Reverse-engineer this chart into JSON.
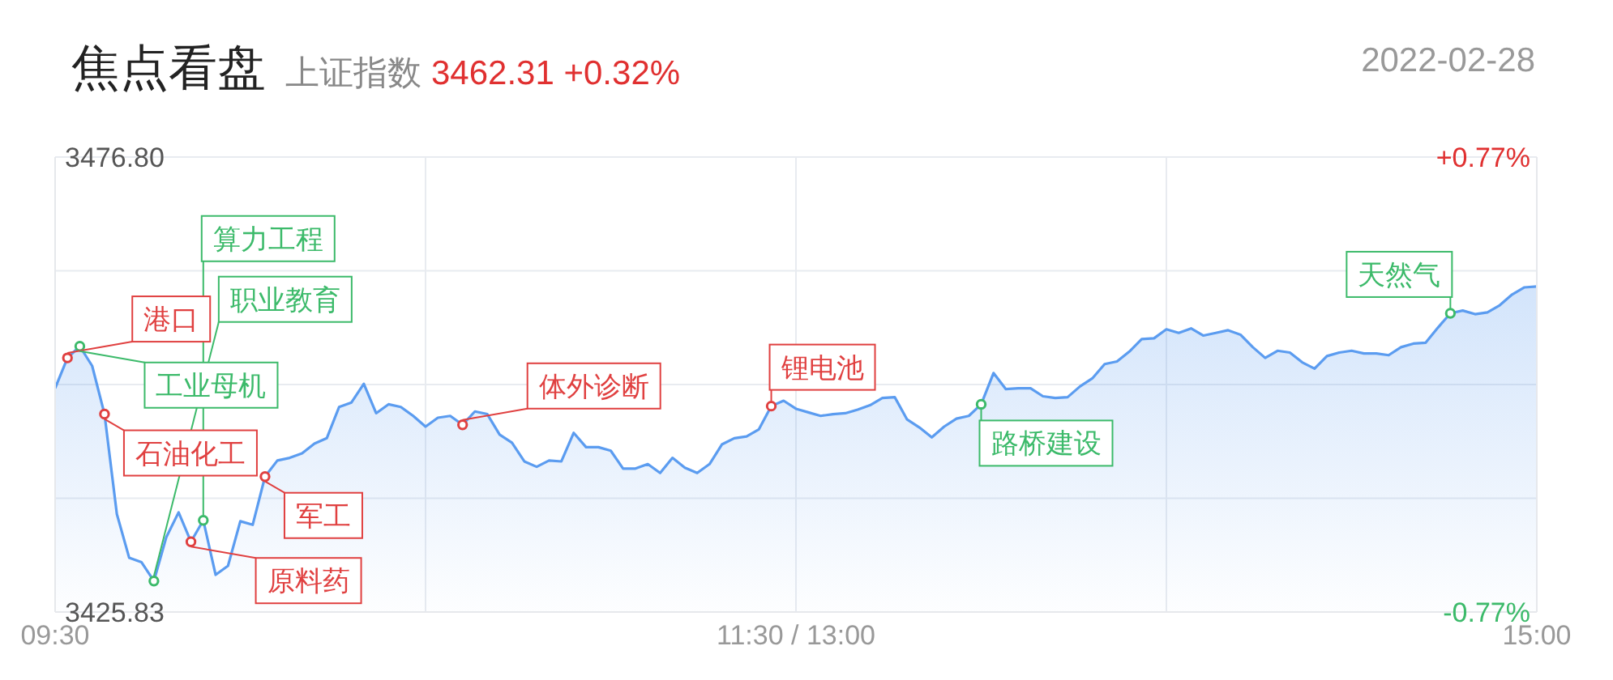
{
  "chart_data": {
    "type": "area",
    "title": "焦点看盘",
    "subtitle": "上证指数 3462.31 +0.32%",
    "annotations": [
      "2022-02-28"
    ],
    "categories": [
      "09:30",
      null,
      null,
      null,
      null,
      null,
      null,
      null,
      null,
      null,
      null,
      null,
      null,
      null,
      null,
      null,
      null,
      null,
      null,
      null,
      null,
      null,
      null,
      null,
      null,
      null,
      null,
      null,
      null,
      null,
      null,
      null,
      null,
      null,
      null,
      null,
      null,
      null,
      null,
      null,
      null,
      null,
      null,
      null,
      null,
      null,
      null,
      null,
      null,
      null,
      null,
      null,
      null,
      null,
      null,
      null,
      null,
      null,
      null,
      null,
      "11:30 / 13:00",
      null,
      null,
      null,
      null,
      null,
      null,
      null,
      null,
      null,
      null,
      null,
      null,
      null,
      null,
      null,
      null,
      null,
      null,
      null,
      null,
      null,
      null,
      null,
      null,
      null,
      null,
      null,
      null,
      null,
      null,
      null,
      null,
      null,
      null,
      null,
      null,
      null,
      null,
      null,
      null,
      null,
      null,
      null,
      null,
      null,
      null,
      null,
      null,
      null,
      null,
      null,
      null,
      null,
      null,
      null,
      null,
      null,
      null,
      null,
      "15:00"
    ],
    "series": [
      {
        "color": "#5b9cf0",
        "values": [
          3450.9,
          3454.3,
          3455.6,
          3453.4,
          3448.0,
          3436.8,
          3431.9,
          3431.4,
          3429.3,
          3434.2,
          3437.0,
          3433.7,
          3436.1,
          3430.0,
          3431.0,
          3436.0,
          3435.6,
          3441.0,
          3442.8,
          3443.1,
          3443.6,
          3444.7,
          3445.3,
          3448.8,
          3449.3,
          3451.4,
          3448.1,
          3449.1,
          3448.8,
          3447.8,
          3446.6,
          3447.6,
          3447.8,
          3446.8,
          3448.3,
          3448.0,
          3445.7,
          3444.8,
          3442.7,
          3442.1,
          3442.8,
          3442.7,
          3445.9,
          3444.3,
          3444.3,
          3443.9,
          3441.9,
          3441.9,
          3442.4,
          3441.4,
          3443.1,
          3442.0,
          3441.4,
          3442.4,
          3444.6,
          3445.3,
          3445.5,
          3446.3,
          3448.9,
          3449.5,
          3448.6,
          3448.2,
          3447.8,
          3448.0,
          3448.1,
          3448.5,
          3449.0,
          3449.8,
          3449.9,
          3447.4,
          3446.5,
          3445.4,
          3446.6,
          3447.5,
          3447.8,
          3449.1,
          3452.6,
          3450.8,
          3450.9,
          3450.9,
          3450.0,
          3449.8,
          3449.9,
          3451.1,
          3452.0,
          3453.6,
          3453.9,
          3455.0,
          3456.4,
          3456.5,
          3457.5,
          3457.1,
          3457.6,
          3456.8,
          3457.1,
          3457.4,
          3456.9,
          3455.5,
          3454.3,
          3455.1,
          3454.9,
          3453.8,
          3453.1,
          3454.5,
          3454.9,
          3455.1,
          3454.8,
          3454.8,
          3454.6,
          3455.5,
          3455.9,
          3456.0,
          3457.7,
          3459.3,
          3459.6,
          3459.2,
          3459.4,
          3460.2,
          3461.4,
          3462.2,
          3462.3
        ]
      },
      {
        "type": "scatter",
        "color": "#e04040",
        "marker": "circle",
        "values": [
          null,
          3454.3,
          null,
          null,
          3448.0,
          null,
          null,
          null,
          null,
          null,
          null,
          3433.7,
          null,
          null,
          null,
          null,
          null,
          3441.0,
          null,
          null,
          null,
          null,
          null,
          null,
          null,
          null,
          null,
          null,
          null,
          null,
          null,
          null,
          null,
          3446.8,
          null,
          null,
          null,
          null,
          null,
          null,
          null,
          null,
          null,
          null,
          null,
          null,
          null,
          null,
          null,
          null,
          null,
          null,
          null,
          null,
          null,
          null,
          null,
          null,
          3448.9,
          null,
          null,
          null,
          null,
          null,
          null,
          null,
          null,
          null,
          null,
          null,
          null,
          null,
          null,
          null,
          null,
          null,
          null,
          null,
          null,
          null,
          null,
          null,
          null,
          null,
          null,
          null,
          null,
          null,
          null,
          null,
          null,
          null,
          null,
          null,
          null,
          null,
          null,
          null,
          null,
          null,
          null,
          null,
          null,
          null,
          null,
          null,
          null,
          null,
          null,
          null,
          null,
          null,
          null,
          null,
          null,
          null,
          null,
          null,
          null,
          null,
          null
        ],
        "value_labels": [
          null,
          "港口",
          null,
          null,
          "石油化工",
          null,
          null,
          null,
          null,
          null,
          null,
          "原料药",
          null,
          null,
          null,
          null,
          null,
          "军工",
          null,
          null,
          null,
          null,
          null,
          null,
          null,
          null,
          null,
          null,
          null,
          null,
          null,
          null,
          null,
          "体外诊断",
          null,
          null,
          null,
          null,
          null,
          null,
          null,
          null,
          null,
          null,
          null,
          null,
          null,
          null,
          null,
          null,
          null,
          null,
          null,
          null,
          null,
          null,
          null,
          null,
          "锂电池",
          null,
          null,
          null,
          null,
          null,
          null,
          null,
          null,
          null,
          null,
          null,
          null,
          null,
          null,
          null,
          null,
          null,
          null,
          null,
          null,
          null,
          null,
          null,
          null,
          null,
          null,
          null,
          null,
          null,
          null,
          null,
          null,
          null,
          null,
          null,
          null,
          null,
          null,
          null,
          null,
          null,
          null,
          null,
          null,
          null,
          null,
          null,
          null,
          null,
          null,
          null,
          null,
          null,
          null,
          null,
          null,
          null,
          null,
          null,
          null,
          null,
          null
        ]
      },
      {
        "type": "scatter",
        "color": "#3cba6a",
        "marker": "circle",
        "values": [
          null,
          null,
          3455.6,
          null,
          null,
          null,
          null,
          null,
          3429.3,
          null,
          null,
          null,
          3436.1,
          null,
          null,
          null,
          null,
          null,
          null,
          null,
          null,
          null,
          null,
          null,
          null,
          null,
          null,
          null,
          null,
          null,
          null,
          null,
          null,
          null,
          null,
          null,
          null,
          null,
          null,
          null,
          null,
          null,
          null,
          null,
          null,
          null,
          null,
          null,
          null,
          null,
          null,
          null,
          null,
          null,
          null,
          null,
          null,
          null,
          null,
          null,
          null,
          null,
          null,
          null,
          null,
          null,
          null,
          null,
          null,
          null,
          null,
          null,
          null,
          null,
          null,
          3449.1,
          null,
          null,
          null,
          null,
          null,
          null,
          null,
          null,
          null,
          null,
          null,
          null,
          null,
          null,
          null,
          null,
          null,
          null,
          null,
          null,
          null,
          null,
          null,
          null,
          null,
          null,
          null,
          null,
          null,
          null,
          null,
          null,
          null,
          null,
          null,
          null,
          null,
          3459.3,
          null,
          null,
          null,
          null,
          null,
          null,
          null
        ],
        "value_labels": [
          null,
          null,
          "工业母机",
          null,
          null,
          null,
          null,
          null,
          "职业教育",
          null,
          null,
          null,
          "算力工程",
          null,
          null,
          null,
          null,
          null,
          null,
          null,
          null,
          null,
          null,
          null,
          null,
          null,
          null,
          null,
          null,
          null,
          null,
          null,
          null,
          null,
          null,
          null,
          null,
          null,
          null,
          null,
          null,
          null,
          null,
          null,
          null,
          null,
          null,
          null,
          null,
          null,
          null,
          null,
          null,
          null,
          null,
          null,
          null,
          null,
          null,
          null,
          null,
          null,
          null,
          null,
          null,
          null,
          null,
          null,
          null,
          null,
          null,
          null,
          null,
          null,
          null,
          "路桥建设",
          null,
          null,
          null,
          null,
          null,
          null,
          null,
          null,
          null,
          null,
          null,
          null,
          null,
          null,
          null,
          null,
          null,
          null,
          null,
          null,
          null,
          null,
          null,
          null,
          null,
          null,
          null,
          null,
          null,
          null,
          null,
          null,
          null,
          null,
          null,
          null,
          null,
          "天然气",
          null,
          null,
          null,
          null,
          null,
          null,
          null
        ]
      }
    ],
    "ylim": [
      3425.83,
      3476.8
    ],
    "yticks": [
      {
        "value": 3425.83,
        "label": "3425.83"
      },
      {
        "value": 3438.57,
        "label": null
      },
      {
        "value": 3451.32,
        "label": null
      },
      {
        "value": 3464.06,
        "label": null
      },
      {
        "value": 3476.8,
        "label": "3476.80"
      }
    ],
    "y2lim": [
      -0.77,
      0.77
    ],
    "y2ticks": [
      {
        "value": -0.77,
        "label": "-0.77%"
      },
      {
        "value": 0.77,
        "label": "+0.77%"
      }
    ],
    "grid": true
  }
}
